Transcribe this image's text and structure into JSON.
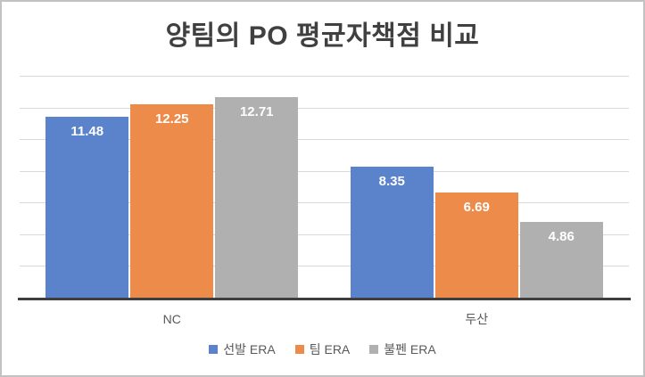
{
  "window": {
    "background": "#ffffff",
    "border_color": "#c2c2c2"
  },
  "chart_data": {
    "type": "bar",
    "title": "양팀의 PO 평균자책점 비교",
    "categories": [
      "NC",
      "두산"
    ],
    "series": [
      {
        "name": "선발 ERA",
        "color": "#5b83cb",
        "values": [
          11.48,
          8.35
        ]
      },
      {
        "name": "팀 ERA",
        "color": "#ed8b4b",
        "values": [
          12.25,
          6.69
        ]
      },
      {
        "name": "불펜 ERA",
        "color": "#b0b0b0",
        "values": [
          12.71,
          4.86
        ]
      }
    ],
    "xlabel": "",
    "ylabel": "",
    "ylim": [
      0,
      14
    ],
    "grid_step": 2,
    "grid": true,
    "y_tick_labels_visible": false,
    "data_label_decimals": 2,
    "data_label_position": "inside-end",
    "legend_position": "bottom"
  },
  "style": {
    "grid_color": "#d9d9d9",
    "axis_color": "#3f3f3f",
    "title_color": "#404040",
    "category_text_color": "#595959",
    "legend_text_color": "#595959",
    "bar_label_color": "#ffffff"
  }
}
